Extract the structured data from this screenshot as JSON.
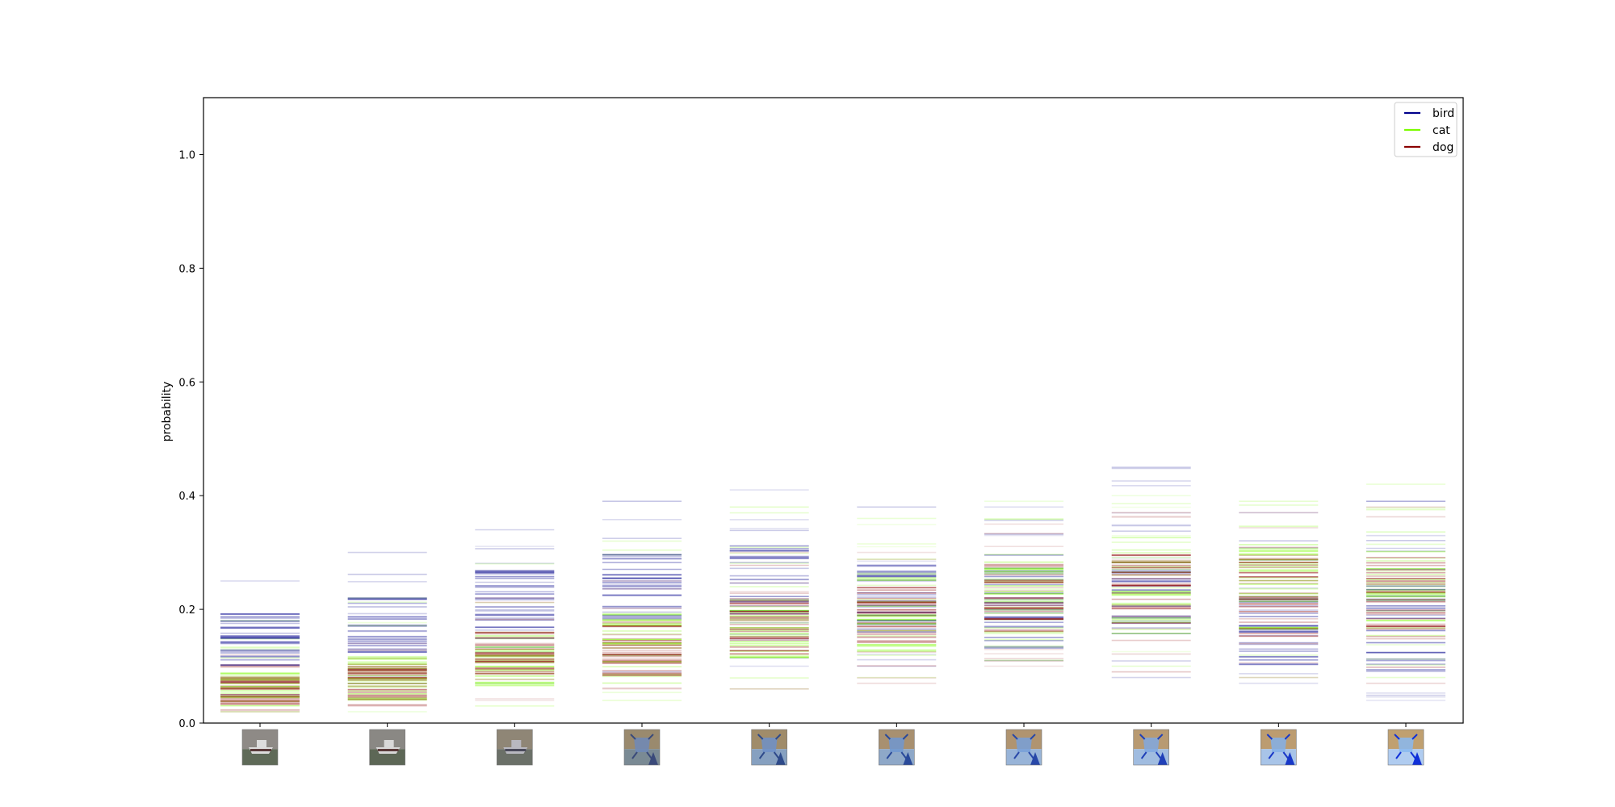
{
  "chart_data": {
    "type": "line",
    "title": "",
    "xlabel": "",
    "ylabel": "probability",
    "ylim": [
      0.0,
      1.1
    ],
    "yticks": [
      "0.0",
      "0.2",
      "0.4",
      "0.6",
      "0.8",
      "1.0"
    ],
    "grid": false,
    "legend_placement": "top-right",
    "categories": [
      "image-1",
      "image-2",
      "image-3",
      "image-4",
      "image-5",
      "image-6",
      "image-7",
      "image-8",
      "image-9",
      "image-10"
    ],
    "series": [
      {
        "name": "bird",
        "color": "#00008b",
        "min": [
          0.05,
          0.07,
          0.07,
          0.09,
          0.1,
          0.1,
          0.11,
          0.08,
          0.07,
          0.04
        ],
        "max": [
          0.25,
          0.3,
          0.34,
          0.39,
          0.41,
          0.38,
          0.38,
          0.45,
          0.37,
          0.39
        ],
        "dense_low": [
          0.1,
          0.12,
          0.13,
          0.18,
          0.19,
          0.16,
          0.13,
          0.15,
          0.1,
          0.09
        ],
        "dense_high": [
          0.2,
          0.22,
          0.27,
          0.3,
          0.32,
          0.28,
          0.3,
          0.27,
          0.22,
          0.26
        ]
      },
      {
        "name": "cat",
        "color": "#7cfc00",
        "min": [
          0.02,
          0.02,
          0.03,
          0.04,
          0.06,
          0.08,
          0.11,
          0.1,
          0.08,
          0.08
        ],
        "max": [
          0.18,
          0.22,
          0.28,
          0.32,
          0.38,
          0.36,
          0.39,
          0.4,
          0.39,
          0.42
        ],
        "dense_low": [
          0.03,
          0.04,
          0.06,
          0.07,
          0.1,
          0.12,
          0.14,
          0.15,
          0.15,
          0.15
        ],
        "dense_high": [
          0.1,
          0.12,
          0.16,
          0.2,
          0.24,
          0.26,
          0.3,
          0.32,
          0.32,
          0.34
        ]
      },
      {
        "name": "dog",
        "color": "#8b0000",
        "min": [
          0.02,
          0.03,
          0.04,
          0.06,
          0.06,
          0.07,
          0.1,
          0.09,
          0.08,
          0.07
        ],
        "max": [
          0.12,
          0.14,
          0.22,
          0.25,
          0.3,
          0.3,
          0.35,
          0.37,
          0.37,
          0.38
        ],
        "dense_low": [
          0.03,
          0.04,
          0.07,
          0.08,
          0.12,
          0.14,
          0.15,
          0.17,
          0.15,
          0.14
        ],
        "dense_high": [
          0.08,
          0.1,
          0.16,
          0.18,
          0.22,
          0.24,
          0.28,
          0.3,
          0.3,
          0.3
        ]
      }
    ],
    "thumbnails": [
      {
        "sky": "#8e8a86",
        "ground": "#5f6a58",
        "subject": "ship",
        "subject_color": "#dcdcdc",
        "accent": "#5a3a3a"
      },
      {
        "sky": "#8a8884",
        "ground": "#5d6756",
        "subject": "ship",
        "subject_color": "#d8d8d8",
        "accent": "#5a3a3a"
      },
      {
        "sky": "#8f8676",
        "ground": "#6b7068",
        "subject": "ship",
        "subject_color": "#b8b8c0",
        "accent": "#4a4a5a"
      },
      {
        "sky": "#9a8a6e",
        "ground": "#7a8a94",
        "subject": "hybrid",
        "subject_color": "#6e88b8",
        "accent": "#3a4a7a"
      },
      {
        "sky": "#a08c6a",
        "ground": "#86a0c0",
        "subject": "hybrid",
        "subject_color": "#6e90c8",
        "accent": "#2e4a8a"
      },
      {
        "sky": "#a89070",
        "ground": "#8ea8c8",
        "subject": "hybrid",
        "subject_color": "#7098d0",
        "accent": "#2a4a9a"
      },
      {
        "sky": "#b09470",
        "ground": "#98b4d8",
        "subject": "hybrid",
        "subject_color": "#78a0d8",
        "accent": "#2848a8"
      },
      {
        "sky": "#b89a72",
        "ground": "#a0bce0",
        "subject": "hybrid",
        "subject_color": "#80a8e0",
        "accent": "#2040b8"
      },
      {
        "sky": "#bc9c70",
        "ground": "#a8c4e8",
        "subject": "hybrid",
        "subject_color": "#84b0e8",
        "accent": "#1838c8"
      },
      {
        "sky": "#c0a070",
        "ground": "#b0ccf0",
        "subject": "hybrid",
        "subject_color": "#88b8f0",
        "accent": "#1030d8"
      }
    ]
  }
}
